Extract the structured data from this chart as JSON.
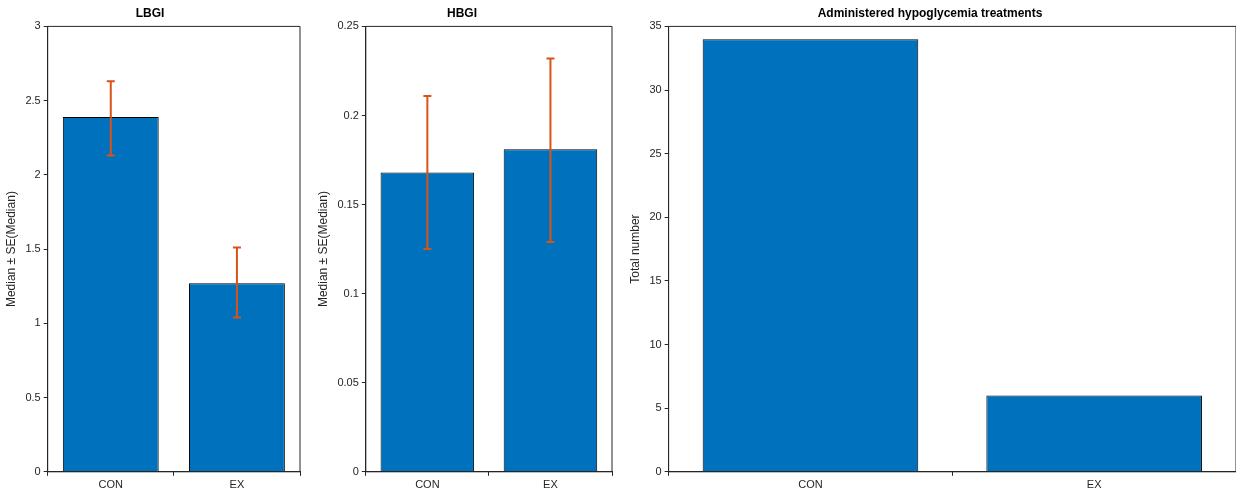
{
  "chart_data": [
    {
      "type": "bar",
      "title": "LBGI",
      "ylabel": "Median ± SE(Median)",
      "categories": [
        "CON",
        "EX"
      ],
      "values": [
        2.39,
        1.27
      ],
      "color": "#0072bd",
      "errors": [
        [
          2.13,
          2.63
        ],
        [
          1.04,
          1.51
        ]
      ],
      "ylim": [
        0,
        3
      ],
      "yticks": [
        0,
        0.5,
        1,
        1.5,
        2,
        2.5,
        3
      ],
      "grid": false,
      "legend": false
    },
    {
      "type": "bar",
      "title": "HBGI",
      "ylabel": "Median ± SE(Median)",
      "categories": [
        "CON",
        "EX"
      ],
      "values": [
        0.168,
        0.181
      ],
      "color": "#0072bd",
      "errors": [
        [
          0.125,
          0.211
        ],
        [
          0.129,
          0.232
        ]
      ],
      "ylim": [
        0,
        0.25
      ],
      "yticks": [
        0,
        0.05,
        0.1,
        0.15,
        0.2,
        0.25
      ],
      "grid": false,
      "legend": false
    },
    {
      "type": "bar",
      "title": "Administered hypoglycemia treatments",
      "ylabel": "Total number",
      "categories": [
        "CON",
        "EX"
      ],
      "values": [
        34,
        6
      ],
      "color": "#0072bd",
      "ylim": [
        0,
        35
      ],
      "yticks": [
        0,
        5,
        10,
        15,
        20,
        25,
        30,
        35
      ],
      "grid": false,
      "legend": false
    }
  ]
}
